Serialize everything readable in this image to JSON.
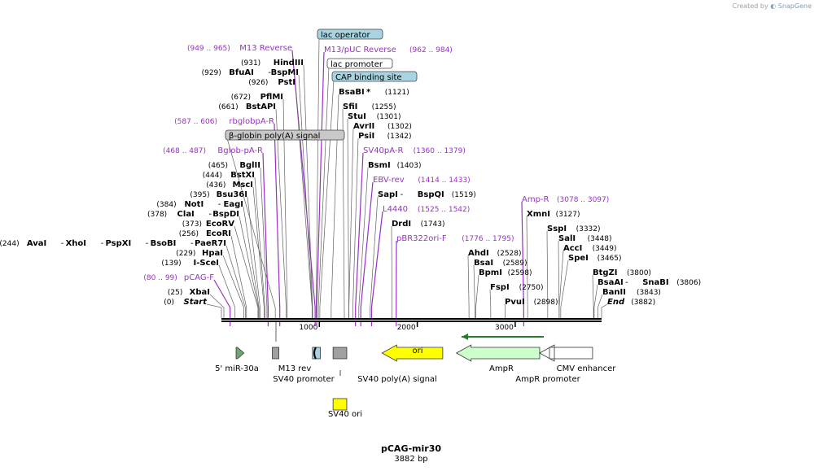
{
  "credit": {
    "prefix": "Created by",
    "brand": "SnapGene"
  },
  "plasmid": {
    "name": "pCAG-mir30",
    "length": "3882 bp",
    "length_bp": 3882
  },
  "colors": {
    "primer": "#9a2fc7",
    "enzyme": "#000000",
    "num": "#000000",
    "feature_blue": "#a8d3e0",
    "feature_gray": "#c8c8c8",
    "ori": "#ffff00",
    "ampr": "#ccffcc",
    "mir": "#6fa86f",
    "arrow": "#2b7a2b"
  },
  "ruler": {
    "ticks": [
      {
        "label": "1000",
        "bp": 1000
      },
      {
        "label": "2000",
        "bp": 2000
      },
      {
        "label": "3000",
        "bp": 3000
      }
    ]
  },
  "labels": [
    {
      "kind": "feature",
      "text": "lac operator",
      "bp": 967,
      "color": "#a8d3e0"
    },
    {
      "kind": "primer",
      "text": "M13 Reverse",
      "range": "(949 .. 965)",
      "bp": 957,
      "side": "left"
    },
    {
      "kind": "primer",
      "text": "M13/pUC Reverse",
      "range": "(962 .. 984)",
      "bp": 973,
      "side": "right"
    },
    {
      "kind": "enzyme",
      "name": "HindIII",
      "num": "(931)",
      "bp": 931,
      "side": "left"
    },
    {
      "kind": "feature",
      "text": "lac promoter",
      "bp": 990,
      "color": "#ffffff"
    },
    {
      "kind": "enzyme",
      "name": "BfuAI",
      "name2": "BspMI",
      "num": "(929)",
      "bp": 929,
      "side": "left"
    },
    {
      "kind": "feature",
      "text": "CAP binding site",
      "bp": 1005,
      "color": "#a8d3e0"
    },
    {
      "kind": "enzyme",
      "name": "PstI",
      "num": "(926)",
      "bp": 926,
      "side": "left"
    },
    {
      "kind": "enzyme",
      "name": "BsaBI",
      "star": "*",
      "num": "(1121)",
      "bp": 1121,
      "side": "right"
    },
    {
      "kind": "enzyme",
      "name": "PflMI",
      "num": "(672)",
      "bp": 672,
      "side": "left"
    },
    {
      "kind": "enzyme",
      "name": "SfiI",
      "num": "(1255)",
      "bp": 1255,
      "side": "right"
    },
    {
      "kind": "enzyme",
      "name": "BstAPI",
      "num": "(661)",
      "bp": 661,
      "side": "left"
    },
    {
      "kind": "enzyme",
      "name": "StuI",
      "num": "(1301)",
      "bp": 1301,
      "side": "right"
    },
    {
      "kind": "primer",
      "text": "rbglobpA-R",
      "range": "(587 .. 606)",
      "bp": 596,
      "side": "left"
    },
    {
      "kind": "enzyme",
      "name": "AvrII",
      "num": "(1302)",
      "bp": 1302,
      "side": "right"
    },
    {
      "kind": "feature",
      "text": "β-globin poly(A) signal",
      "bp": 550,
      "color": "#c8c8c8"
    },
    {
      "kind": "enzyme",
      "name": "PsiI",
      "num": "(1342)",
      "bp": 1342,
      "side": "right"
    },
    {
      "kind": "primer",
      "text": "Bglob-pA-R",
      "range": "(468 .. 487)",
      "bp": 477,
      "side": "left"
    },
    {
      "kind": "primer",
      "text": "SV40pA-R",
      "range": "(1360 .. 1379)",
      "bp": 1369,
      "side": "right"
    },
    {
      "kind": "enzyme",
      "name": "BglII",
      "num": "(465)",
      "bp": 465,
      "side": "left"
    },
    {
      "kind": "enzyme",
      "name": "BsmI",
      "num": "(1403)",
      "bp": 1403,
      "side": "right"
    },
    {
      "kind": "enzyme",
      "name": "BstXI",
      "num": "(444)",
      "bp": 444,
      "side": "left"
    },
    {
      "kind": "primer",
      "text": "EBV-rev",
      "range": "(1414 .. 1433)",
      "bp": 1423,
      "side": "right"
    },
    {
      "kind": "enzyme",
      "name": "MscI",
      "num": "(436)",
      "bp": 436,
      "side": "left"
    },
    {
      "kind": "enzyme",
      "name": "Bsu36I",
      "num": "(395)",
      "bp": 395,
      "side": "left"
    },
    {
      "kind": "enzyme",
      "name": "SapI",
      "name2": "BspQI",
      "num": "(1519)",
      "bp": 1519,
      "side": "right"
    },
    {
      "kind": "primer",
      "text": "Amp-R",
      "range": "(3078 .. 3097)",
      "bp": 3087,
      "side": "right"
    },
    {
      "kind": "enzyme",
      "name": "NotI",
      "name2": "EagI",
      "num": "(384)",
      "bp": 384,
      "side": "left"
    },
    {
      "kind": "primer",
      "text": "L4440",
      "range": "(1525 .. 1542)",
      "bp": 1533,
      "side": "right"
    },
    {
      "kind": "enzyme",
      "name": "ClaI",
      "name2": "BspDI",
      "num": "(378)",
      "bp": 378,
      "side": "left"
    },
    {
      "kind": "enzyme",
      "name": "XmnI",
      "num": "(3127)",
      "bp": 3127,
      "side": "right"
    },
    {
      "kind": "enzyme",
      "name": "EcoRV",
      "num": "(373)",
      "bp": 373,
      "side": "left"
    },
    {
      "kind": "enzyme",
      "name": "DrdI",
      "num": "(1743)",
      "bp": 1743,
      "side": "right"
    },
    {
      "kind": "enzyme",
      "name": "SspI",
      "num": "(3332)",
      "bp": 3332,
      "side": "right"
    },
    {
      "kind": "enzyme",
      "name": "EcoRI",
      "num": "(256)",
      "bp": 256,
      "side": "left"
    },
    {
      "kind": "primer",
      "text": "pBR322ori-F",
      "range": "(1776 .. 1795)",
      "bp": 1785,
      "side": "right"
    },
    {
      "kind": "enzyme",
      "name": "SalI",
      "num": "(3448)",
      "bp": 3448,
      "side": "right"
    },
    {
      "kind": "enzyme",
      "name": "AvaI",
      "name2": "XhoI",
      "name3": "PspXI",
      "name4": "BsoBI",
      "name5": "PaeR7I",
      "num": "(244)",
      "bp": 244,
      "side": "left"
    },
    {
      "kind": "enzyme",
      "name": "AccI",
      "num": "(3449)",
      "bp": 3449,
      "side": "right"
    },
    {
      "kind": "enzyme",
      "name": "AhdI",
      "num": "(2528)",
      "bp": 2528,
      "side": "right"
    },
    {
      "kind": "enzyme",
      "name": "HpaI",
      "num": "(229)",
      "bp": 229,
      "side": "left"
    },
    {
      "kind": "enzyme",
      "name": "SpeI",
      "num": "(3465)",
      "bp": 3465,
      "side": "right"
    },
    {
      "kind": "enzyme",
      "name": "BsaI",
      "num": "(2589)",
      "bp": 2589,
      "side": "right"
    },
    {
      "kind": "enzyme",
      "name": "I-SceI",
      "num": "(139)",
      "bp": 139,
      "side": "left"
    },
    {
      "kind": "enzyme",
      "name": "BtgZI",
      "num": "(3800)",
      "bp": 3800,
      "side": "right"
    },
    {
      "kind": "enzyme",
      "name": "BpmI",
      "num": "(2598)",
      "bp": 2598,
      "side": "right"
    },
    {
      "kind": "primer",
      "text": "pCAG-F",
      "range": "(80 .. 99)",
      "bp": 89,
      "side": "left"
    },
    {
      "kind": "enzyme",
      "name": "BsaAI",
      "name2": "SnaBI",
      "num": "(3806)",
      "bp": 3806,
      "side": "right"
    },
    {
      "kind": "enzyme",
      "name": "FspI",
      "num": "(2750)",
      "bp": 2750,
      "side": "right"
    },
    {
      "kind": "enzyme",
      "name": "BanII",
      "num": "(3843)",
      "bp": 3843,
      "side": "right"
    },
    {
      "kind": "enzyme",
      "name": "XbaI",
      "num": "(25)",
      "bp": 25,
      "side": "left"
    },
    {
      "kind": "enzyme",
      "name": "PvuI",
      "num": "(2898)",
      "bp": 2898,
      "side": "right"
    },
    {
      "kind": "enzyme",
      "name": "Start",
      "italic": true,
      "num": "(0)",
      "bp": 0,
      "side": "left"
    },
    {
      "kind": "enzyme",
      "name": "End",
      "italic": true,
      "num": "(3882)",
      "bp": 3882,
      "side": "right"
    }
  ],
  "features": [
    {
      "name": "5' miR-30a",
      "start": 150,
      "end": 230,
      "type": "arrow-right",
      "color": "#6fa86f"
    },
    {
      "name": "M13 rev",
      "start": 520,
      "end": 580,
      "type": "box",
      "color": "#a0a0a0"
    },
    {
      "name": "SV40 promoter",
      "start": 930,
      "end": 1010,
      "type": "box",
      "color": "#a8d3e0"
    },
    {
      "name": "SV40 poly(A) signal",
      "start": 1140,
      "end": 1280,
      "type": "box",
      "color": "#a0a0a0"
    },
    {
      "name": "SV40 ori",
      "start": 1140,
      "end": 1280,
      "type": "box",
      "color": "#ffff00",
      "row": 2
    },
    {
      "name": "ori",
      "start": 1640,
      "end": 2260,
      "type": "arrow-left",
      "color": "#ffff00"
    },
    {
      "name": "AmpR",
      "start": 2400,
      "end": 3250,
      "type": "arrow-left",
      "color": "#ccffcc"
    },
    {
      "name": "AmpR promoter",
      "start": 3250,
      "end": 3350,
      "type": "arrow-left",
      "color": "#ffffff"
    },
    {
      "name": "CMV enhancer",
      "start": 3400,
      "end": 3790,
      "type": "box",
      "color": "#ffffff"
    }
  ],
  "feature_labels": [
    {
      "text": "5' miR-30a"
    },
    {
      "text": "M13 rev"
    },
    {
      "text": "SV40 promoter"
    },
    {
      "text": "SV40 poly(A) signal"
    },
    {
      "text": "SV40 ori"
    },
    {
      "text": "ori"
    },
    {
      "text": "AmpR"
    },
    {
      "text": "AmpR promoter"
    },
    {
      "text": "CMV enhancer"
    }
  ]
}
